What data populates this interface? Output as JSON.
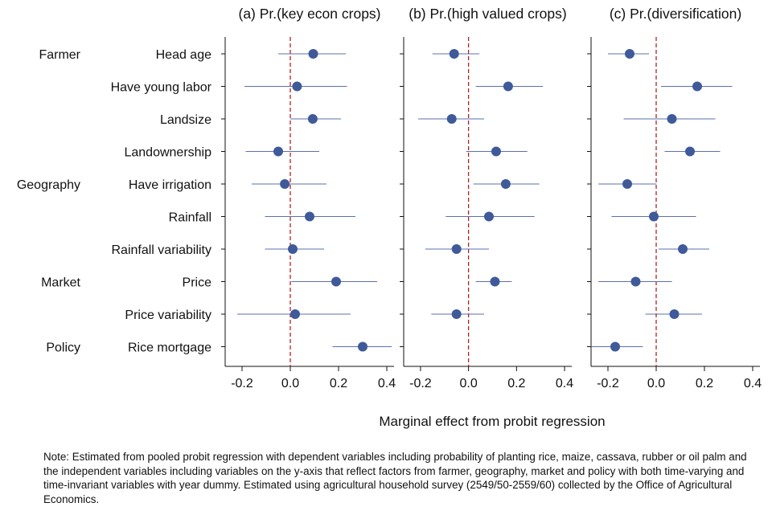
{
  "chart_data": {
    "type": "scatter",
    "chart_kind": "coefficient-plot",
    "xlabel": "Marginal effect from probit regression",
    "xlim": [
      -0.27,
      0.43
    ],
    "xticks": [
      -0.2,
      0.0,
      0.2,
      0.4
    ],
    "xtick_labels": [
      "-0.2",
      "0.0",
      "0.2",
      "0.4"
    ],
    "reference_line": 0,
    "groups": [
      {
        "label": "Farmer",
        "first_variable": "Head age"
      },
      {
        "label": "Geography",
        "first_variable": "Have irrigation"
      },
      {
        "label": "Market",
        "first_variable": "Price"
      },
      {
        "label": "Policy",
        "first_variable": "Rice mortgage"
      }
    ],
    "variables": [
      "Head age",
      "Have young labor",
      "Landsize",
      "Landownership",
      "Have irrigation",
      "Rainfall",
      "Rainfall variability",
      "Price",
      "Price variability",
      "Rice mortgage"
    ],
    "panels": [
      {
        "title": "(a) Pr.(key econ crops)",
        "estimates": [
          0.095,
          0.028,
          0.093,
          -0.05,
          -0.023,
          0.08,
          0.01,
          0.19,
          0.02,
          0.3
        ],
        "ci_low": [
          -0.05,
          -0.19,
          0.0,
          -0.185,
          -0.16,
          -0.105,
          -0.105,
          0.005,
          -0.22,
          0.175
        ],
        "ci_high": [
          0.23,
          0.235,
          0.21,
          0.12,
          0.15,
          0.27,
          0.14,
          0.36,
          0.25,
          0.42
        ]
      },
      {
        "title": "(b) Pr.(high valued crops)",
        "estimates": [
          -0.06,
          0.165,
          -0.07,
          0.115,
          0.155,
          0.085,
          -0.05,
          0.11,
          -0.05,
          null
        ],
        "ci_low": [
          -0.15,
          0.03,
          -0.21,
          -0.01,
          0.02,
          -0.095,
          -0.18,
          0.03,
          -0.155,
          null
        ],
        "ci_high": [
          0.045,
          0.31,
          0.065,
          0.245,
          0.295,
          0.275,
          0.085,
          0.18,
          0.065,
          null
        ]
      },
      {
        "title": "(c) Pr.(diversification)",
        "estimates": [
          -0.11,
          0.17,
          0.065,
          0.14,
          -0.12,
          -0.01,
          0.11,
          -0.085,
          0.075,
          -0.17
        ],
        "ci_low": [
          -0.2,
          0.02,
          -0.135,
          0.035,
          -0.24,
          -0.185,
          0.01,
          -0.24,
          -0.045,
          -0.27
        ],
        "ci_high": [
          -0.03,
          0.315,
          0.245,
          0.265,
          0.0,
          0.165,
          0.22,
          0.065,
          0.19,
          -0.055
        ]
      }
    ],
    "note": "Note: Estimated from pooled probit regression with dependent variables including probability of planting rice, maize, cassava, rubber or oil palm and the independent variables including variables on the y-axis that reflect factors from farmer, geography, market and policy with both time-varying and time-invariant variables with year dummy.  Estimated using agricultural household survey (2549/50-2559/60) collected by the Office of Agricultural Economics.",
    "colors": {
      "marker": "#3f5a99",
      "ci": "#5b70b0",
      "reference": "#b22222",
      "axis": "#111111"
    }
  }
}
